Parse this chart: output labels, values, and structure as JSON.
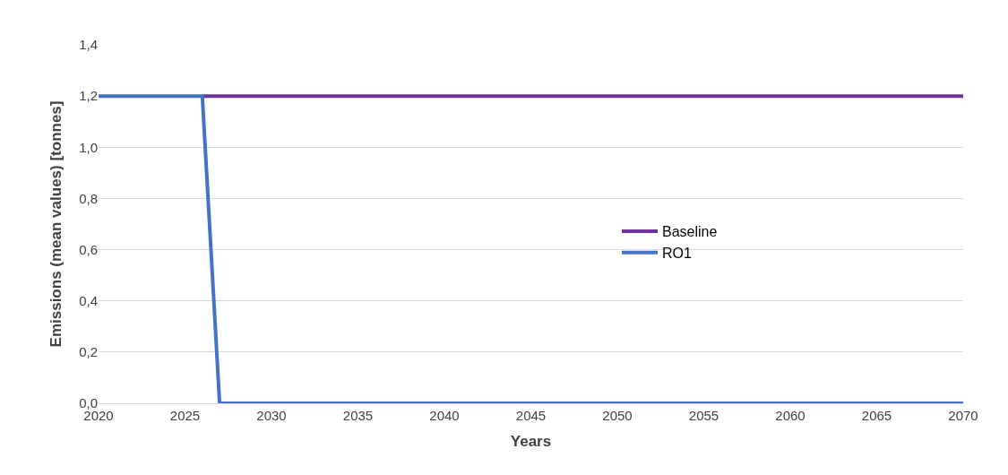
{
  "chart_data": {
    "type": "line",
    "xlabel": "Years",
    "ylabel": "Emissions (mean values) [tonnes]",
    "series": [
      {
        "name": "Baseline",
        "color": "#7030a0",
        "x": [
          2026,
          2070
        ],
        "values": [
          1.2,
          1.2
        ]
      },
      {
        "name": "RO1",
        "color": "#4472c4",
        "x": [
          2020,
          2026,
          2027,
          2070
        ],
        "values": [
          1.2,
          1.2,
          0,
          0
        ]
      }
    ],
    "xlim": [
      2020,
      2070
    ],
    "xticks": [
      2020,
      2025,
      2030,
      2035,
      2040,
      2045,
      2050,
      2055,
      2060,
      2065,
      2070
    ],
    "ylim": [
      0,
      1.4
    ],
    "yticks": [
      {
        "value": 0,
        "label": "0,0"
      },
      {
        "value": 0.2,
        "label": "0,2"
      },
      {
        "value": 0.4,
        "label": "0,4"
      },
      {
        "value": 0.6,
        "label": "0,6"
      },
      {
        "value": 0.8,
        "label": "0,8"
      },
      {
        "value": 1.0,
        "label": "1,0"
      },
      {
        "value": 1.2,
        "label": "1,2"
      },
      {
        "value": 1.4,
        "label": "1,4"
      }
    ],
    "grid": "y",
    "legend": "center",
    "marker": "none",
    "line_style": "solid"
  }
}
